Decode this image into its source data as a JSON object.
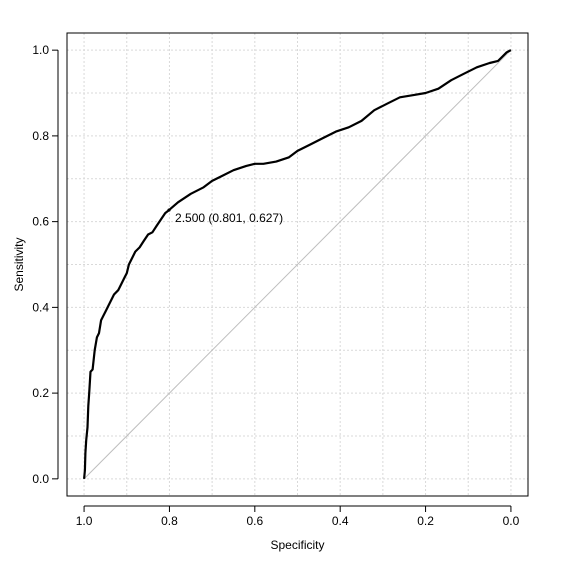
{
  "chart_data": {
    "type": "line",
    "xlabel": "Specificity",
    "ylabel": "Sensitivity",
    "xlim": [
      1.04,
      -0.04
    ],
    "ylim": [
      -0.04,
      1.04
    ],
    "x_reversed": true,
    "grid": true,
    "x_ticks": [
      "1.0",
      "0.8",
      "0.6",
      "0.4",
      "0.2",
      "0.0"
    ],
    "x_tick_values": [
      1.0,
      0.8,
      0.6,
      0.4,
      0.2,
      0.0
    ],
    "y_ticks": [
      "0.0",
      "0.2",
      "0.4",
      "0.6",
      "0.8",
      "1.0"
    ],
    "y_tick_values": [
      0.0,
      0.2,
      0.4,
      0.6,
      0.8,
      1.0
    ],
    "series": [
      {
        "color": "#000000",
        "specificity": [
          1.0,
          0.998,
          0.997,
          0.995,
          0.992,
          0.99,
          0.988,
          0.985,
          0.98,
          0.975,
          0.97,
          0.965,
          0.96,
          0.955,
          0.95,
          0.94,
          0.93,
          0.92,
          0.91,
          0.905,
          0.9,
          0.895,
          0.885,
          0.88,
          0.87,
          0.86,
          0.85,
          0.84,
          0.83,
          0.82,
          0.81,
          0.801,
          0.78,
          0.75,
          0.72,
          0.7,
          0.68,
          0.65,
          0.62,
          0.6,
          0.58,
          0.55,
          0.52,
          0.5,
          0.47,
          0.44,
          0.41,
          0.38,
          0.35,
          0.32,
          0.29,
          0.26,
          0.23,
          0.2,
          0.17,
          0.14,
          0.11,
          0.08,
          0.05,
          0.03,
          0.02,
          0.01,
          0.0
        ],
        "sensitivity": [
          0.0,
          0.02,
          0.06,
          0.09,
          0.12,
          0.17,
          0.2,
          0.25,
          0.255,
          0.3,
          0.33,
          0.34,
          0.37,
          0.38,
          0.39,
          0.41,
          0.43,
          0.44,
          0.46,
          0.47,
          0.48,
          0.5,
          0.52,
          0.53,
          0.54,
          0.555,
          0.57,
          0.575,
          0.59,
          0.605,
          0.62,
          0.627,
          0.645,
          0.665,
          0.68,
          0.695,
          0.705,
          0.72,
          0.73,
          0.735,
          0.735,
          0.74,
          0.75,
          0.765,
          0.78,
          0.795,
          0.81,
          0.82,
          0.835,
          0.86,
          0.875,
          0.89,
          0.895,
          0.9,
          0.91,
          0.93,
          0.945,
          0.96,
          0.97,
          0.975,
          0.985,
          0.995,
          1.0
        ]
      }
    ],
    "reference_line": {
      "from": [
        1.0,
        0.0
      ],
      "to": [
        0.0,
        1.0
      ],
      "color": "#bebebe"
    },
    "highlight_point": {
      "specificity": 0.801,
      "sensitivity": 0.627,
      "label": "2.500 (0.801, 0.627)"
    }
  }
}
